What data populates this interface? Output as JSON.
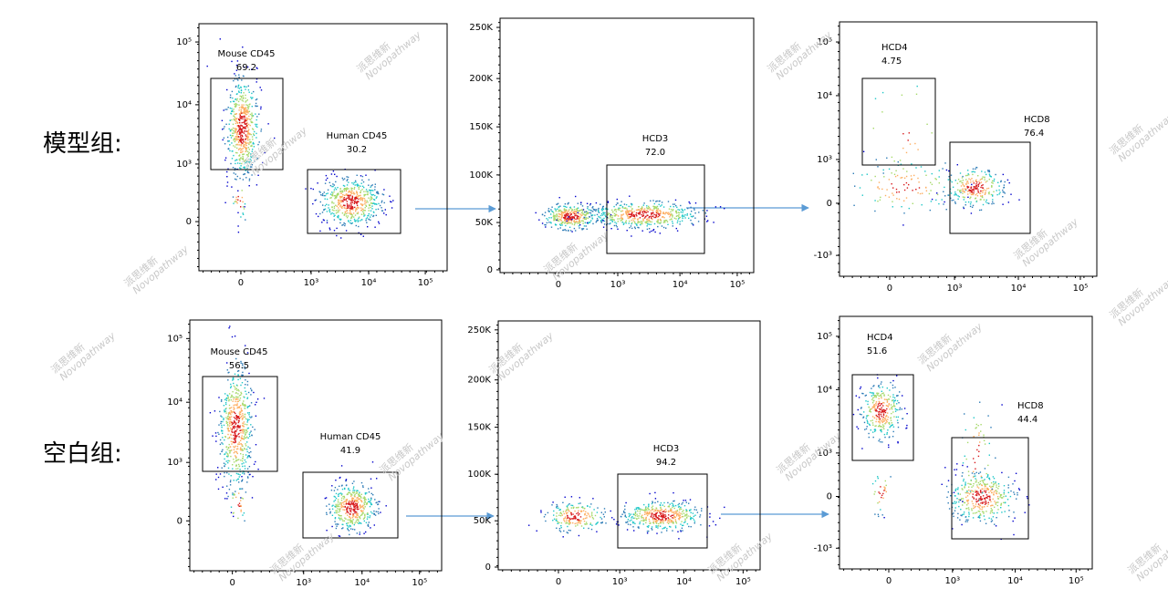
{
  "watermark": {
    "cn": "派思维新",
    "en": "Novopathway"
  },
  "rows": [
    {
      "label": "模型组:",
      "panels": [
        {
          "yticks": [
            "10⁵",
            "10⁴",
            "10³",
            "0"
          ],
          "xticks": [
            "0",
            "10³",
            "10⁴",
            "10⁵"
          ],
          "gates": [
            {
              "name": "Mouse CD45",
              "value": "69.2"
            },
            {
              "name": "Human CD45",
              "value": "30.2"
            }
          ]
        },
        {
          "yticks": [
            "250K",
            "200K",
            "150K",
            "100K",
            "50K",
            "0"
          ],
          "xticks": [
            "0",
            "10³",
            "10⁴",
            "10⁵"
          ],
          "gates": [
            {
              "name": "HCD3",
              "value": "72.0"
            }
          ]
        },
        {
          "yticks": [
            "10⁵",
            "10⁴",
            "10³",
            "0",
            "-10³"
          ],
          "xticks": [
            "0",
            "10³",
            "10⁴",
            "10⁵"
          ],
          "gates": [
            {
              "name": "HCD4",
              "value": "4.75"
            },
            {
              "name": "HCD8",
              "value": "76.4"
            }
          ]
        }
      ]
    },
    {
      "label": "空白组:",
      "panels": [
        {
          "yticks": [
            "10⁵",
            "10⁴",
            "10³",
            "0"
          ],
          "xticks": [
            "0",
            "10³",
            "10⁴",
            "10⁵"
          ],
          "gates": [
            {
              "name": "Mouse CD45",
              "value": "56.5"
            },
            {
              "name": "Human CD45",
              "value": "41.9"
            }
          ]
        },
        {
          "yticks": [
            "250K",
            "200K",
            "150K",
            "100K",
            "50K",
            "0"
          ],
          "xticks": [
            "0",
            "10³",
            "10⁴",
            "10⁵"
          ],
          "gates": [
            {
              "name": "HCD3",
              "value": "94.2"
            }
          ]
        },
        {
          "yticks": [
            "10⁵",
            "10⁴",
            "10³",
            "0",
            "-10³"
          ],
          "xticks": [
            "0",
            "10³",
            "10⁴",
            "10⁵"
          ],
          "gates": [
            {
              "name": "HCD4",
              "value": "51.6"
            },
            {
              "name": "HCD8",
              "value": "44.4"
            }
          ]
        }
      ]
    }
  ]
}
